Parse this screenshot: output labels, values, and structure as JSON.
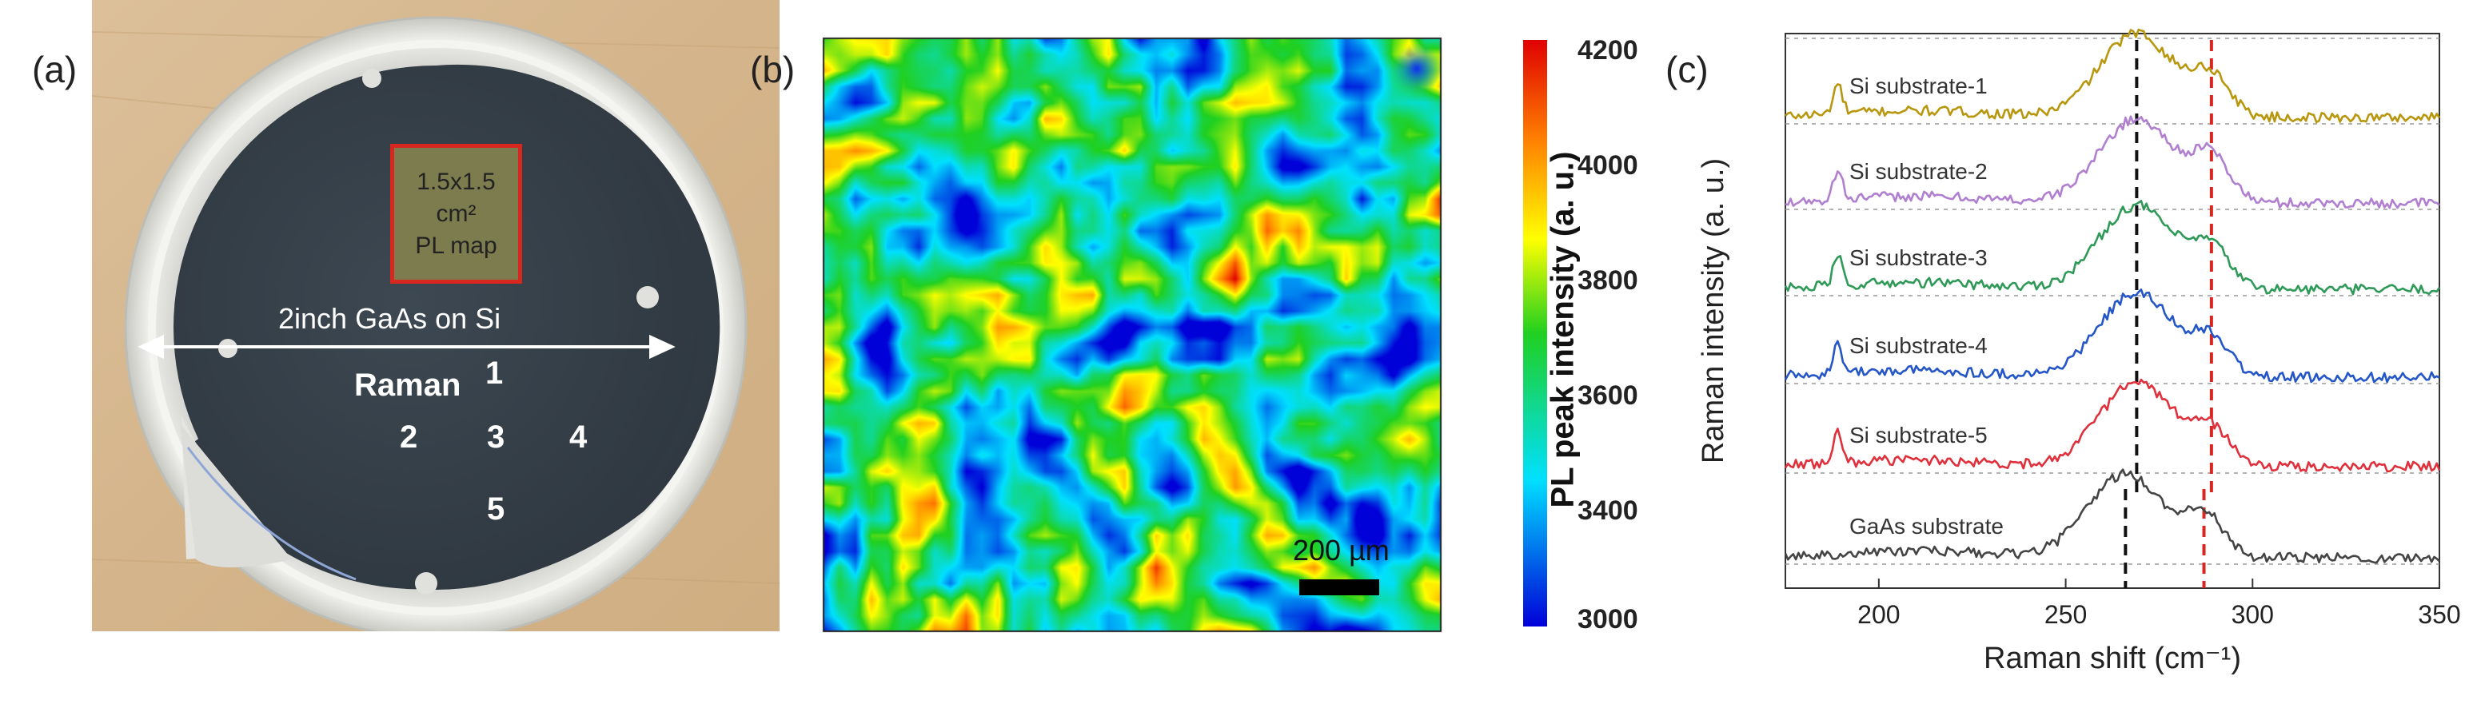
{
  "panels": {
    "a": {
      "label": "(a)",
      "arrow_label": "2inch GaAs on Si",
      "pl_box": {
        "line1": "1.5x1.5",
        "line2": "cm²",
        "line3": "PL map"
      },
      "raman_label": "Raman",
      "points": [
        "1",
        "2",
        "3",
        "4",
        "5"
      ],
      "colors": {
        "wafer": "#37414a",
        "holder": "#e2e2df",
        "background": "#d8b88f",
        "pl_box_border": "#d8271f"
      }
    },
    "b": {
      "label": "(b)",
      "scalebar_label": "200 µm",
      "colorbar": {
        "title": "PL peak intensity (a. u.)",
        "ticks": [
          "4200",
          "4000",
          "3800",
          "3600",
          "3400",
          "3000"
        ],
        "min": 3000,
        "max": 4200,
        "colors": [
          "#0000d8",
          "#00e0ff",
          "#20d020",
          "#ffff00",
          "#ff8000",
          "#e00000"
        ]
      }
    },
    "c": {
      "label": "(c)"
    }
  },
  "chart_data": {
    "type": "line",
    "xlabel": "Raman shift (cm⁻¹)",
    "ylabel": "Raman intensity (a. u.)",
    "xlim": [
      175,
      350
    ],
    "xticks": [
      "200",
      "250",
      "300",
      "350"
    ],
    "grid": "dashed horizontal baselines",
    "reference_lines": [
      {
        "name": "black dashed",
        "x": 269,
        "color": "#111111",
        "span": "upper"
      },
      {
        "name": "black dashed",
        "x": 266,
        "color": "#111111",
        "span": "lower"
      },
      {
        "name": "red dashed",
        "x": 289,
        "color": "#d8271f",
        "span": "upper"
      },
      {
        "name": "red dashed",
        "x": 287,
        "color": "#d8271f",
        "span": "lower"
      }
    ],
    "series": [
      {
        "name": "Si substrate-1",
        "color": "#b8970f",
        "peak_x": 269,
        "peak_height": 1.0,
        "shoulder_x": 289,
        "shoulder_height": 0.45,
        "small_peak_x": 189
      },
      {
        "name": "Si substrate-2",
        "color": "#b07fd0",
        "peak_x": 269,
        "peak_height": 1.0,
        "shoulder_x": 289,
        "shoulder_height": 0.5,
        "small_peak_x": 189
      },
      {
        "name": "Si substrate-3",
        "color": "#2f9a58",
        "peak_x": 269,
        "peak_height": 1.0,
        "shoulder_x": 289,
        "shoulder_height": 0.45,
        "small_peak_x": 189
      },
      {
        "name": "Si substrate-4",
        "color": "#2456c8",
        "peak_x": 269,
        "peak_height": 1.0,
        "shoulder_x": 289,
        "shoulder_height": 0.4,
        "small_peak_x": 189
      },
      {
        "name": "Si substrate-5",
        "color": "#e0303c",
        "peak_x": 269,
        "peak_height": 1.0,
        "shoulder_x": 289,
        "shoulder_height": 0.4,
        "small_peak_x": 189
      },
      {
        "name": "GaAs substrate",
        "color": "#444444",
        "peak_x": 266,
        "peak_height": 1.0,
        "shoulder_x": 287,
        "shoulder_height": 0.5,
        "small_peak_x": null
      }
    ]
  }
}
